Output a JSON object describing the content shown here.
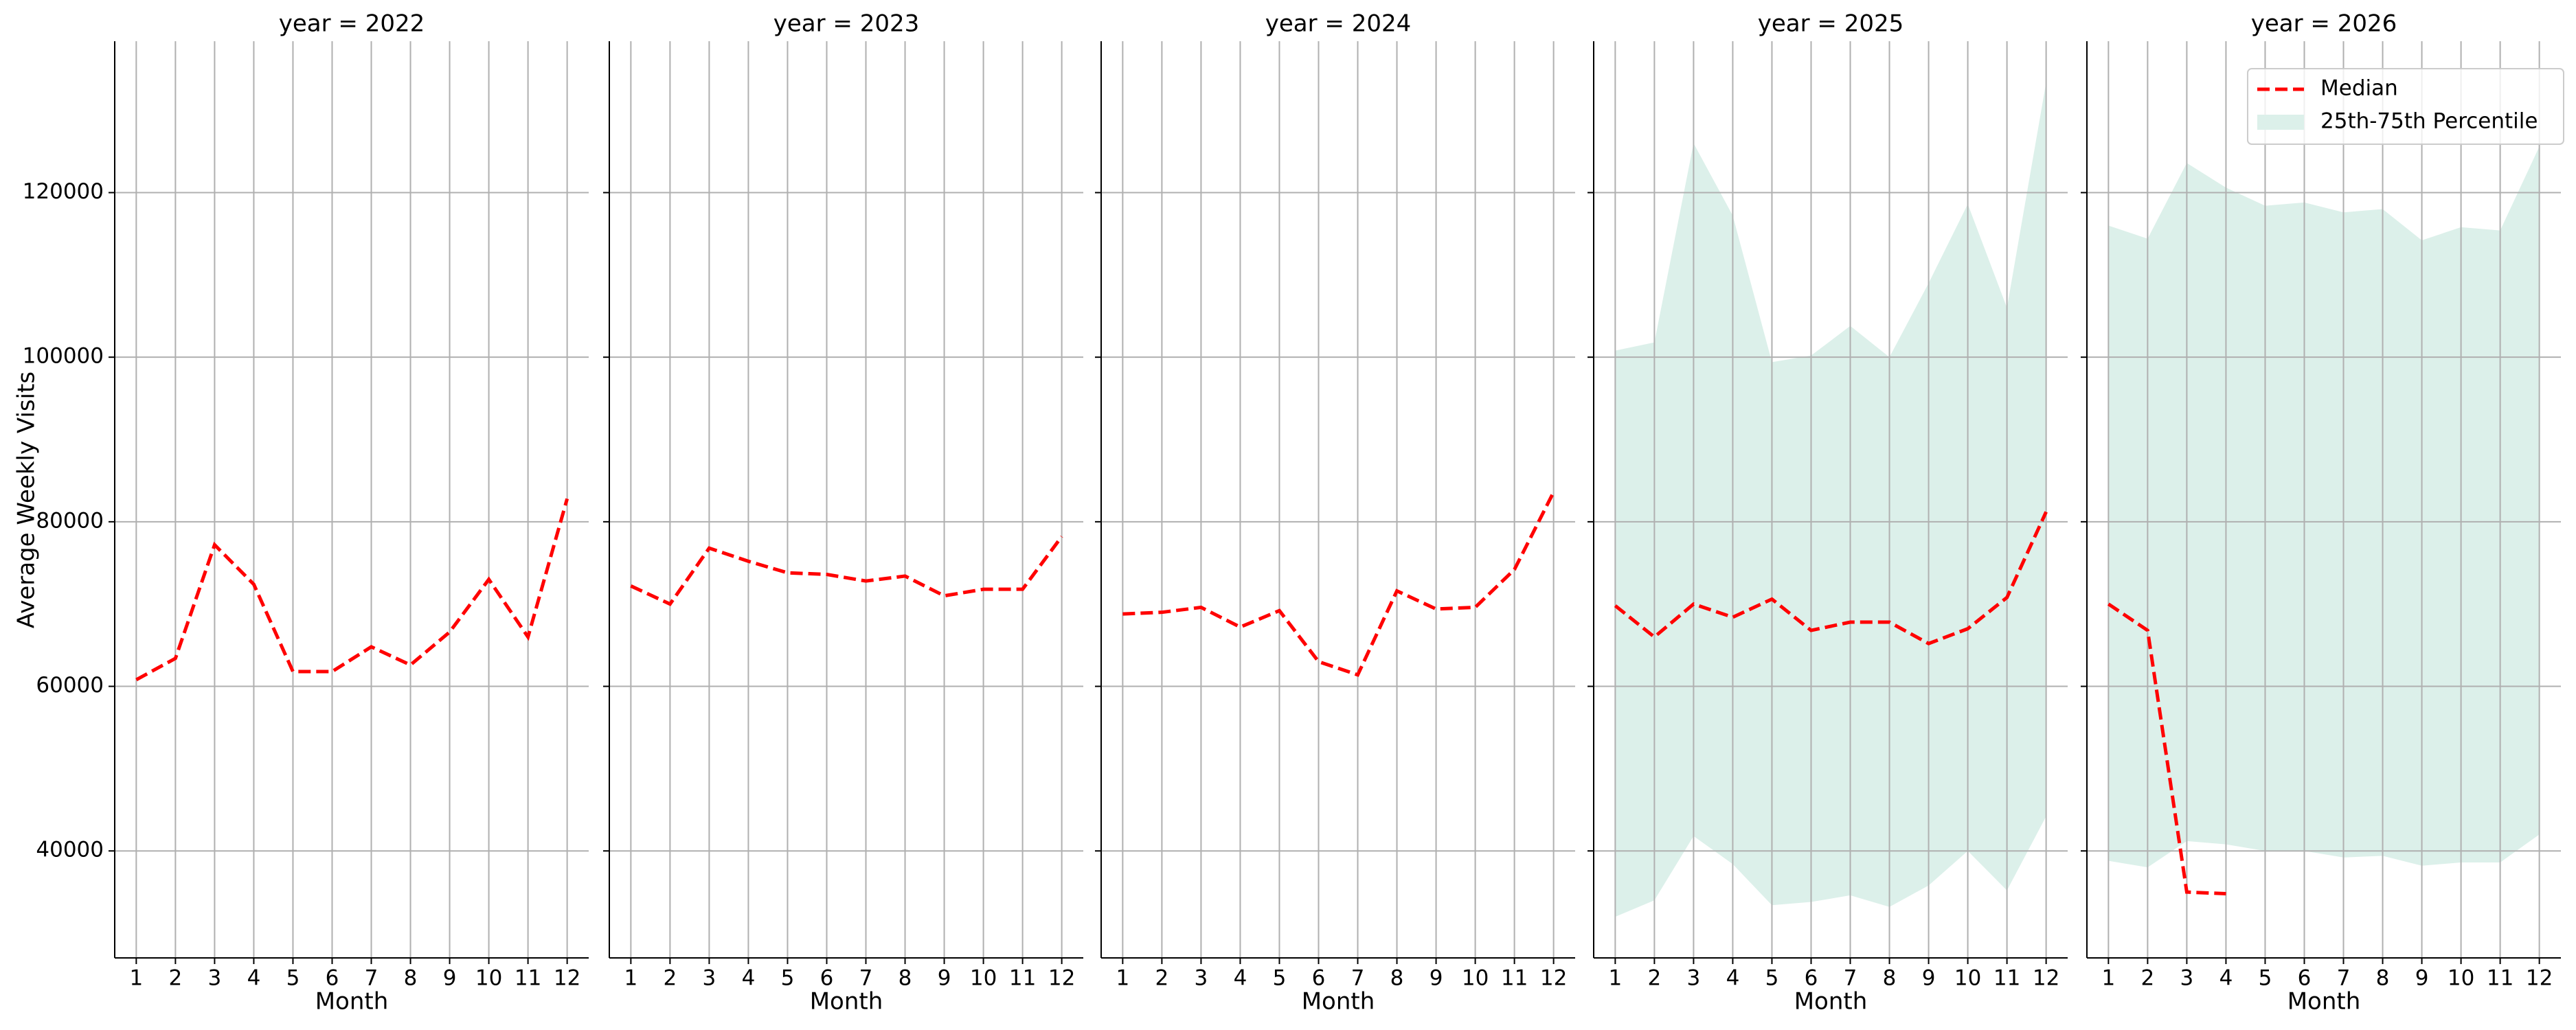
{
  "chart_data": [
    {
      "type": "line",
      "title": "year = 2022",
      "xlabel": "Month",
      "ylabel": "Average Weekly Visits",
      "x": [
        1,
        2,
        3,
        4,
        5,
        6,
        7,
        8,
        9,
        10,
        11,
        12
      ],
      "xlim": [
        0.45,
        12.55
      ],
      "xticks": [
        1,
        2,
        3,
        4,
        5,
        6,
        7,
        8,
        9,
        10,
        11,
        12
      ],
      "ylim": [
        27000,
        138400
      ],
      "yticks": [
        40000,
        60000,
        80000,
        100000,
        120000
      ],
      "grid": true,
      "series": [
        {
          "color": "#ff0000",
          "values": [
            60800,
            63400,
            77200,
            72400,
            61800,
            61800,
            64800,
            62600,
            66600,
            73000,
            66000,
            82800
          ]
        }
      ]
    },
    {
      "type": "line",
      "title": "year = 2023",
      "xlabel": "Month",
      "x": [
        1,
        2,
        3,
        4,
        5,
        6,
        7,
        8,
        9,
        10,
        11,
        12
      ],
      "xlim": [
        0.45,
        12.55
      ],
      "xticks": [
        1,
        2,
        3,
        4,
        5,
        6,
        7,
        8,
        9,
        10,
        11,
        12
      ],
      "ylim": [
        27000,
        138400
      ],
      "grid": true,
      "series": [
        {
          "color": "#ff0000",
          "values": [
            72200,
            70000,
            76800,
            75200,
            73800,
            73600,
            72800,
            73400,
            71000,
            71800,
            71800,
            78200
          ]
        }
      ]
    },
    {
      "type": "line",
      "title": "year = 2024",
      "xlabel": "Month",
      "x": [
        1,
        2,
        3,
        4,
        5,
        6,
        7,
        8,
        9,
        10,
        11,
        12
      ],
      "xlim": [
        0.45,
        12.55
      ],
      "xticks": [
        1,
        2,
        3,
        4,
        5,
        6,
        7,
        8,
        9,
        10,
        11,
        12
      ],
      "ylim": [
        27000,
        138400
      ],
      "grid": true,
      "series": [
        {
          "color": "#ff0000",
          "values": [
            68800,
            69000,
            69600,
            67200,
            69200,
            63000,
            61400,
            71600,
            69400,
            69600,
            74200,
            83600
          ]
        }
      ]
    },
    {
      "type": "line",
      "title": "year = 2025",
      "xlabel": "Month",
      "x": [
        1,
        2,
        3,
        4,
        5,
        6,
        7,
        8,
        9,
        10,
        11,
        12
      ],
      "xlim": [
        0.45,
        12.55
      ],
      "xticks": [
        1,
        2,
        3,
        4,
        5,
        6,
        7,
        8,
        9,
        10,
        11,
        12
      ],
      "ylim": [
        27000,
        138400
      ],
      "grid": true,
      "band": {
        "color": "#dcf0ea",
        "lower": [
          32000,
          34000,
          41800,
          38400,
          33400,
          33800,
          34600,
          33200,
          35800,
          40000,
          35200,
          44200
        ],
        "upper": [
          100800,
          101800,
          126000,
          117200,
          99400,
          100200,
          103800,
          100000,
          109000,
          118600,
          106000,
          133400
        ]
      },
      "series": [
        {
          "color": "#ff0000",
          "values": [
            69800,
            66000,
            70000,
            68400,
            70600,
            66800,
            67800,
            67800,
            65200,
            67000,
            70800,
            81200
          ]
        }
      ]
    },
    {
      "type": "line",
      "title": "year = 2026",
      "xlabel": "Month",
      "x": [
        1,
        2,
        3,
        4,
        5,
        6,
        7,
        8,
        9,
        10,
        11,
        12
      ],
      "xlim": [
        0.45,
        12.55
      ],
      "xticks": [
        1,
        2,
        3,
        4,
        5,
        6,
        7,
        8,
        9,
        10,
        11,
        12
      ],
      "ylim": [
        27000,
        138400
      ],
      "grid": true,
      "legend": "upper right",
      "band": {
        "name": "25th-75th Percentile",
        "color": "#dcf0ea",
        "lower": [
          38800,
          38000,
          41200,
          40800,
          40000,
          40000,
          39200,
          39400,
          38200,
          38600,
          38600,
          42000
        ],
        "upper": [
          116000,
          114400,
          123600,
          120600,
          118400,
          118800,
          117600,
          118000,
          114200,
          115800,
          115400,
          125600
        ]
      },
      "series": [
        {
          "name": "Median",
          "color": "#ff0000",
          "values": [
            70000,
            66800,
            35000,
            34800,
            null,
            null,
            null,
            null,
            null,
            null,
            null,
            null
          ]
        }
      ]
    }
  ]
}
